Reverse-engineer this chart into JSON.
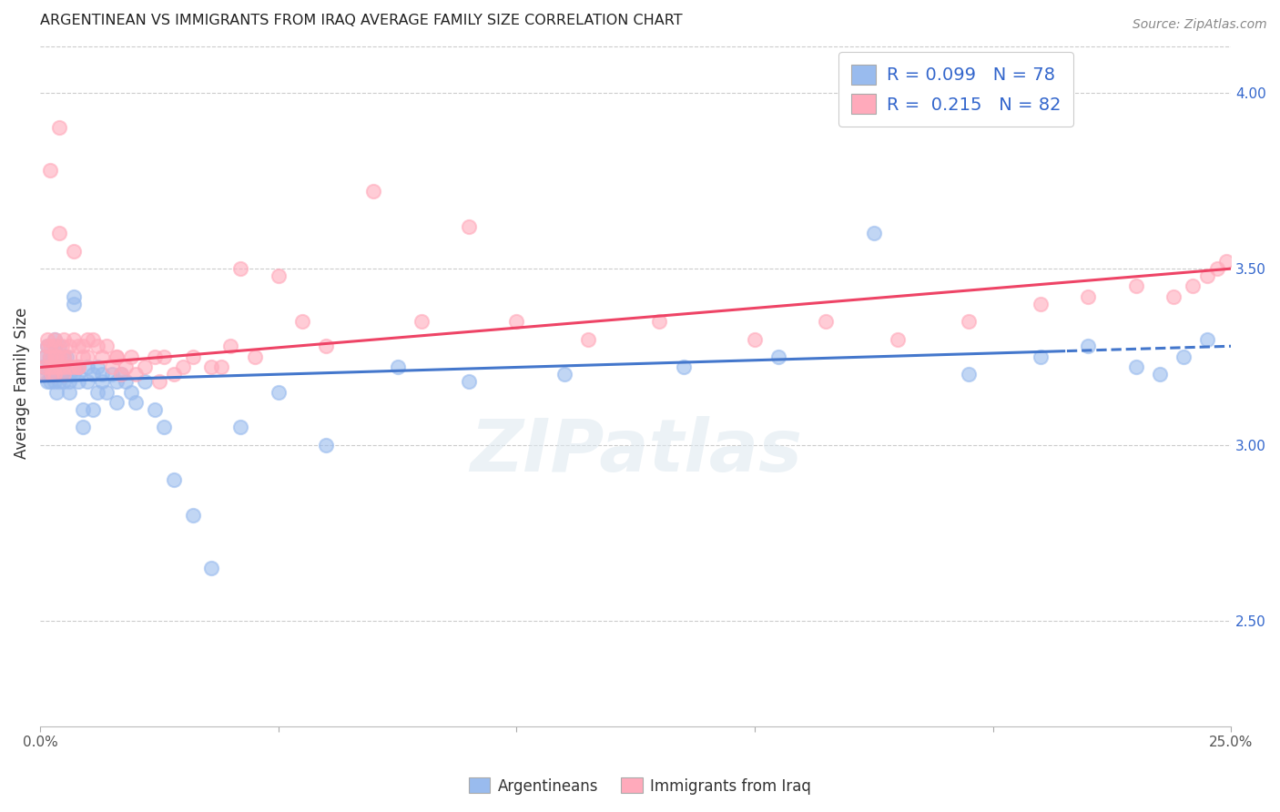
{
  "title": "ARGENTINEAN VS IMMIGRANTS FROM IRAQ AVERAGE FAMILY SIZE CORRELATION CHART",
  "source": "Source: ZipAtlas.com",
  "ylabel": "Average Family Size",
  "right_yticks": [
    2.5,
    3.0,
    3.5,
    4.0
  ],
  "xlim": [
    0.0,
    0.25
  ],
  "ylim": [
    2.2,
    4.15
  ],
  "blue_color": "#99BBEE",
  "pink_color": "#FFAABB",
  "blue_line_color": "#4477CC",
  "pink_line_color": "#EE4466",
  "blue_R": 0.099,
  "blue_N": 78,
  "pink_R": 0.215,
  "pink_N": 82,
  "watermark": "ZIPatlas",
  "legend_labels": [
    "Argentineans",
    "Immigrants from Iraq"
  ],
  "blue_scatter_x": [
    0.0005,
    0.001,
    0.001,
    0.0015,
    0.0015,
    0.002,
    0.002,
    0.002,
    0.0025,
    0.0025,
    0.003,
    0.003,
    0.003,
    0.003,
    0.003,
    0.0035,
    0.0035,
    0.004,
    0.004,
    0.004,
    0.004,
    0.004,
    0.0045,
    0.005,
    0.005,
    0.005,
    0.005,
    0.0055,
    0.006,
    0.006,
    0.006,
    0.006,
    0.007,
    0.007,
    0.007,
    0.008,
    0.008,
    0.008,
    0.009,
    0.009,
    0.01,
    0.01,
    0.011,
    0.011,
    0.012,
    0.012,
    0.013,
    0.013,
    0.014,
    0.015,
    0.016,
    0.016,
    0.017,
    0.018,
    0.019,
    0.02,
    0.022,
    0.024,
    0.026,
    0.028,
    0.032,
    0.036,
    0.042,
    0.05,
    0.06,
    0.075,
    0.09,
    0.11,
    0.135,
    0.155,
    0.175,
    0.195,
    0.21,
    0.22,
    0.23,
    0.235,
    0.24,
    0.245
  ],
  "blue_scatter_y": [
    3.22,
    3.2,
    3.25,
    3.18,
    3.28,
    3.22,
    3.18,
    3.25,
    3.2,
    3.22,
    3.3,
    3.22,
    3.18,
    3.25,
    3.28,
    3.2,
    3.15,
    3.22,
    3.18,
    3.25,
    3.2,
    3.28,
    3.22,
    3.25,
    3.18,
    3.2,
    3.22,
    3.25,
    3.2,
    3.22,
    3.18,
    3.15,
    3.4,
    3.42,
    3.2,
    3.2,
    3.18,
    3.22,
    3.1,
    3.05,
    3.22,
    3.18,
    3.2,
    3.1,
    3.22,
    3.15,
    3.18,
    3.2,
    3.15,
    3.2,
    3.18,
    3.12,
    3.2,
    3.18,
    3.15,
    3.12,
    3.18,
    3.1,
    3.05,
    2.9,
    2.8,
    2.65,
    3.05,
    3.15,
    3.0,
    3.22,
    3.18,
    3.2,
    3.22,
    3.25,
    3.6,
    3.2,
    3.25,
    3.28,
    3.22,
    3.2,
    3.25,
    3.3
  ],
  "pink_scatter_x": [
    0.0005,
    0.001,
    0.001,
    0.0015,
    0.0015,
    0.002,
    0.002,
    0.002,
    0.0025,
    0.003,
    0.003,
    0.003,
    0.003,
    0.003,
    0.0035,
    0.004,
    0.004,
    0.004,
    0.0045,
    0.005,
    0.005,
    0.005,
    0.005,
    0.006,
    0.006,
    0.006,
    0.007,
    0.007,
    0.007,
    0.008,
    0.008,
    0.009,
    0.009,
    0.01,
    0.01,
    0.011,
    0.012,
    0.013,
    0.014,
    0.015,
    0.016,
    0.017,
    0.018,
    0.019,
    0.02,
    0.022,
    0.024,
    0.026,
    0.028,
    0.03,
    0.032,
    0.036,
    0.04,
    0.045,
    0.05,
    0.06,
    0.07,
    0.08,
    0.09,
    0.1,
    0.115,
    0.13,
    0.15,
    0.165,
    0.18,
    0.195,
    0.21,
    0.22,
    0.23,
    0.238,
    0.242,
    0.245,
    0.247,
    0.249,
    0.038,
    0.055,
    0.042,
    0.025,
    0.016,
    0.008,
    0.004,
    0.002
  ],
  "pink_scatter_y": [
    3.2,
    3.25,
    3.22,
    3.28,
    3.3,
    3.22,
    3.28,
    3.25,
    3.2,
    3.28,
    3.22,
    3.25,
    3.3,
    3.2,
    3.25,
    3.6,
    3.25,
    3.22,
    3.28,
    3.3,
    3.25,
    3.22,
    3.2,
    3.28,
    3.22,
    3.25,
    3.55,
    3.3,
    3.22,
    3.28,
    3.22,
    3.28,
    3.25,
    3.3,
    3.25,
    3.3,
    3.28,
    3.25,
    3.28,
    3.22,
    3.25,
    3.2,
    3.22,
    3.25,
    3.2,
    3.22,
    3.25,
    3.25,
    3.2,
    3.22,
    3.25,
    3.22,
    3.28,
    3.25,
    3.48,
    3.28,
    3.72,
    3.35,
    3.62,
    3.35,
    3.3,
    3.35,
    3.3,
    3.35,
    3.3,
    3.35,
    3.4,
    3.42,
    3.45,
    3.42,
    3.45,
    3.48,
    3.5,
    3.52,
    3.22,
    3.35,
    3.5,
    3.18,
    3.25,
    3.22,
    3.9,
    3.78
  ]
}
